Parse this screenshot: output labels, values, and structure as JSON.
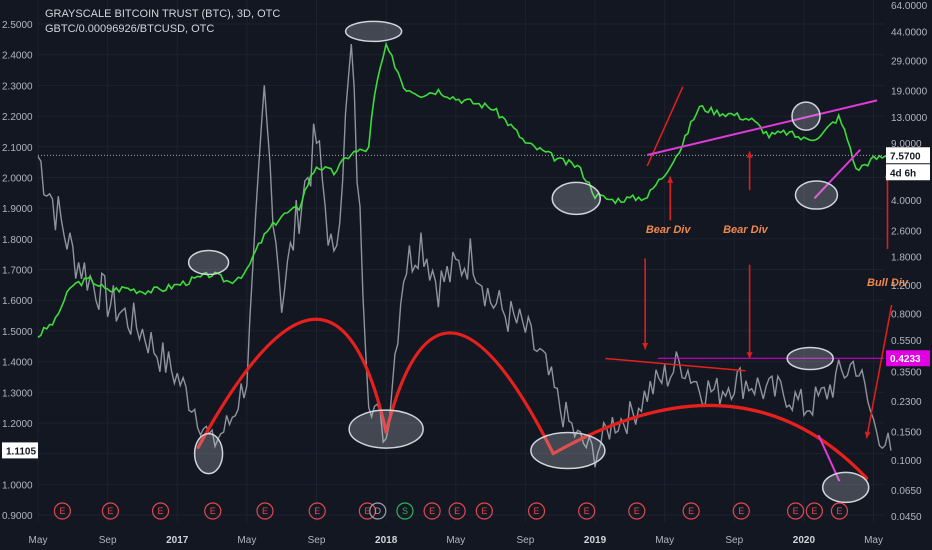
{
  "header": {
    "title": "GRAYSCALE BITCOIN TRUST (BTC), 3D, OTC",
    "subtitle": "GBTC/0.00096926/BTCUSD, OTC"
  },
  "colors": {
    "background": "#131722",
    "gbtc_line": "#3ddc3a",
    "ratio_line": "#8f939c",
    "arc": "#e6201c",
    "arrow": "#d9201c",
    "trend_pink": "#e03ad8",
    "level_magenta": "#e100e1",
    "ellipse": "#cfd3da",
    "annotation": "#f0894a"
  },
  "chart_data": {
    "type": "line",
    "x_ticks": [
      "May",
      "Sep",
      "2017",
      "May",
      "Sep",
      "2018",
      "May",
      "Sep",
      "2019",
      "May",
      "Sep",
      "2020",
      "May"
    ],
    "left_axis": {
      "ticks": [
        "2.5000",
        "2.4000",
        "2.3000",
        "2.2000",
        "2.1000",
        "2.0000",
        "1.9000",
        "1.8000",
        "1.7000",
        "1.6000",
        "1.5000",
        "1.4000",
        "1.3000",
        "1.2000",
        "1.1000",
        "1.0000",
        "0.9000"
      ],
      "ylim": [
        0.9,
        2.5
      ],
      "current_label": "1.1105"
    },
    "right_axis": {
      "scale": "log",
      "ticks": [
        "64.0000",
        "44.0000",
        "29.0000",
        "19.0000",
        "13.0000",
        "9.0000",
        "6.0000",
        "4.0000",
        "2.6000",
        "1.8000",
        "1.2000",
        "0.8000",
        "0.5500",
        "0.3500",
        "0.2300",
        "0.1500",
        "0.1000",
        "0.0650",
        "0.0450"
      ],
      "current_label": "7.5700",
      "countdown_label": "4d 6h",
      "level_label": "0.4233"
    },
    "series": [
      {
        "name": "GBTC",
        "axis": "right",
        "x": [
          "2016-04",
          "2016-05",
          "2016-06",
          "2016-07",
          "2016-08",
          "2016-09",
          "2016-10",
          "2016-11",
          "2016-12",
          "2017-01",
          "2017-02",
          "2017-03",
          "2017-04",
          "2017-05",
          "2017-06",
          "2017-07",
          "2017-08",
          "2017-09",
          "2017-10",
          "2017-11",
          "2017-12",
          "2018-01",
          "2018-02",
          "2018-03",
          "2018-04",
          "2018-05",
          "2018-06",
          "2018-07",
          "2018-08",
          "2018-09",
          "2018-10",
          "2018-11",
          "2018-12",
          "2019-01",
          "2019-02",
          "2019-03",
          "2019-04",
          "2019-05",
          "2019-06",
          "2019-07",
          "2019-08",
          "2019-09",
          "2019-10",
          "2019-11",
          "2019-12",
          "2020-01",
          "2020-02",
          "2020-03",
          "2020-04",
          "2020-05"
        ],
        "values": [
          0.58,
          0.72,
          1.2,
          1.3,
          1.1,
          1.15,
          1.1,
          1.12,
          1.2,
          1.3,
          1.4,
          1.25,
          1.45,
          2.4,
          3.2,
          3.6,
          6.5,
          5.9,
          7.8,
          8.3,
          35,
          20,
          18,
          19,
          17,
          16,
          15,
          12,
          9,
          8,
          7,
          6.5,
          4.3,
          4.0,
          4.1,
          4.2,
          5.8,
          8.5,
          15,
          14,
          13.5,
          12.5,
          10,
          10.5,
          9.5,
          10,
          13,
          6.1,
          7.2,
          7.57
        ]
      },
      {
        "name": "GBTC/0.00096926/BTCUSD",
        "axis": "left",
        "x": [
          "2016-04",
          "2016-05",
          "2016-06",
          "2016-07",
          "2016-08",
          "2016-09",
          "2016-10",
          "2016-11",
          "2016-12",
          "2017-01",
          "2017-02",
          "2017-03",
          "2017-04",
          "2017-05",
          "2017-06",
          "2017-07",
          "2017-08",
          "2017-09",
          "2017-10",
          "2017-11",
          "2017-12",
          "2018-01",
          "2018-02",
          "2018-03",
          "2018-04",
          "2018-05",
          "2018-06",
          "2018-07",
          "2018-08",
          "2018-09",
          "2018-10",
          "2018-11",
          "2018-12",
          "2019-01",
          "2019-02",
          "2019-03",
          "2019-04",
          "2019-05",
          "2019-06",
          "2019-07",
          "2019-08",
          "2019-09",
          "2019-10",
          "2019-11",
          "2019-12",
          "2020-01",
          "2020-02",
          "2020-03",
          "2020-04",
          "2020-05"
        ],
        "values": [
          2.07,
          1.9,
          1.75,
          1.67,
          1.6,
          1.55,
          1.5,
          1.42,
          1.35,
          1.25,
          1.13,
          1.2,
          1.35,
          2.25,
          1.6,
          1.9,
          2.12,
          1.7,
          2.4,
          1.3,
          1.15,
          1.7,
          1.8,
          1.65,
          1.7,
          1.75,
          1.6,
          1.55,
          1.5,
          1.4,
          1.25,
          1.15,
          1.1,
          1.2,
          1.22,
          1.3,
          1.35,
          1.4,
          1.32,
          1.3,
          1.34,
          1.33,
          1.3,
          1.3,
          1.25,
          1.28,
          1.35,
          1.4,
          1.2,
          1.11
        ]
      }
    ],
    "annotations": [
      "Bear Div",
      "Bear Div",
      "Bull Div"
    ],
    "event_markers": [
      "E",
      "E",
      "E",
      "E",
      "E",
      "E",
      "E",
      "D",
      "S",
      "E",
      "E",
      "E",
      "E",
      "E",
      "E",
      "E",
      "E",
      "E",
      "E",
      "E"
    ]
  }
}
